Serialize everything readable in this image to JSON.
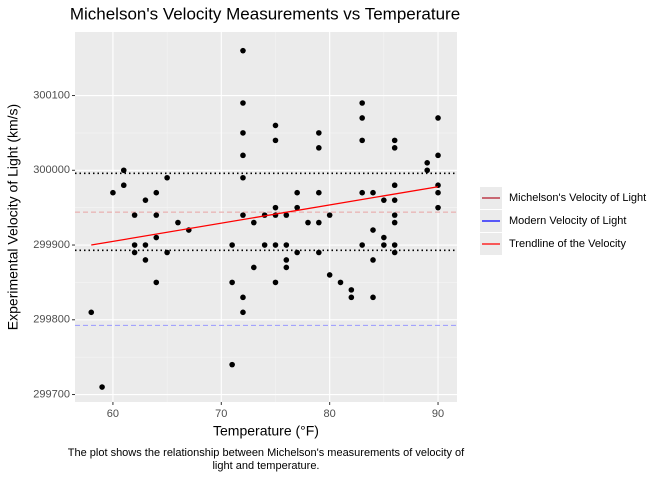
{
  "chart_data": {
    "type": "scatter",
    "title": "Michelson's Velocity Measurements vs Temperature",
    "x_label": "Temperature (°F)",
    "y_label": "Experimental Velocity of Light (km/s)",
    "caption": [
      "The plot shows the relationship between Michelson's measurements of velocity of",
      "light and temperature."
    ],
    "xlim": [
      56.5,
      91.75
    ],
    "ylim": [
      299690,
      300185
    ],
    "xticks": [
      60,
      70,
      80,
      90
    ],
    "yticks": [
      299700,
      299800,
      299900,
      300000,
      300100
    ],
    "grid": true,
    "series": [
      {
        "color": "#000000",
        "x": [
          58,
          59,
          60,
          61,
          61,
          62,
          62,
          62,
          63,
          63,
          63,
          64,
          64,
          64,
          64,
          65,
          65,
          66,
          67,
          71,
          71,
          71,
          72,
          72,
          72,
          72,
          72,
          72,
          72,
          72,
          73,
          73,
          74,
          74,
          75,
          75,
          75,
          75,
          75,
          75,
          76,
          76,
          76,
          76,
          77,
          77,
          77,
          78,
          79,
          79,
          79,
          79,
          79,
          80,
          80,
          81,
          82,
          82,
          83,
          83,
          83,
          83,
          83,
          84,
          84,
          84,
          84,
          85,
          85,
          85,
          86,
          86,
          86,
          86,
          86,
          86,
          86,
          86,
          89,
          89,
          90,
          90,
          90,
          90,
          90
        ],
        "values": [
          299810,
          299710,
          299970,
          300000,
          299980,
          299940,
          299900,
          299890,
          299960,
          299900,
          299880,
          299970,
          299940,
          299910,
          299850,
          299990,
          299890,
          299930,
          299920,
          299900,
          299850,
          299740,
          300160,
          300090,
          300050,
          300020,
          299990,
          299940,
          299830,
          299810,
          299930,
          299870,
          299940,
          299900,
          300060,
          300040,
          299950,
          299940,
          299900,
          299850,
          299940,
          299900,
          299880,
          299870,
          299970,
          299950,
          299890,
          299930,
          300050,
          300030,
          299970,
          299930,
          299890,
          299940,
          299860,
          299850,
          299840,
          299830,
          300090,
          300070,
          300040,
          299970,
          299900,
          299970,
          299920,
          299880,
          299830,
          299960,
          299910,
          299900,
          300040,
          300030,
          299980,
          299960,
          299940,
          299930,
          299900,
          299890,
          300010,
          300000,
          300070,
          300020,
          299980,
          299970,
          299950
        ]
      }
    ],
    "hlines": [
      {
        "value": 299996,
        "color": "#000000",
        "dash": "dotted"
      },
      {
        "value": 299893,
        "color": "#000000",
        "dash": "dotted"
      },
      {
        "value": 299944,
        "color": "#e8a3a3",
        "dash": "dashed"
      },
      {
        "value": 299792.458,
        "color": "#9999ff",
        "dash": "dashed"
      }
    ],
    "trendline": {
      "color": "#ff0000",
      "x": [
        58,
        90
      ],
      "values": [
        299900,
        299978
      ]
    },
    "legend": [
      {
        "name": "Michelson's Velocity of Light",
        "color": "#b2182b"
      },
      {
        "name": "Modern Velocity of Light",
        "color": "#0000ff"
      },
      {
        "name": "Trendline of the Velocity",
        "color": "#ff0000"
      }
    ],
    "legend_position": "right"
  }
}
